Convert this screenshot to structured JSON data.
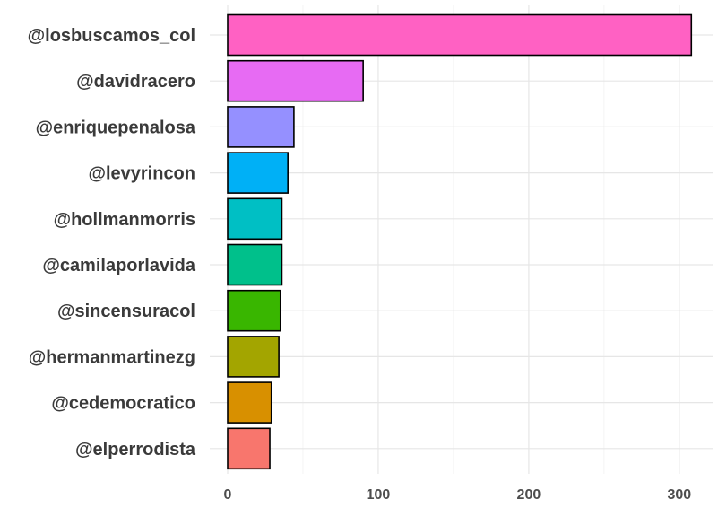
{
  "chart_data": {
    "type": "bar",
    "orientation": "horizontal",
    "title": "",
    "xlabel": "",
    "ylabel": "",
    "categories": [
      "@losbuscamos_col",
      "@davidracero",
      "@enriquepenalosa",
      "@levyrincon",
      "@hollmanmorris",
      "@camilaporlavida",
      "@sincensuracol",
      "@hermanmartinezg",
      "@cedemocratico",
      "@elperrodista"
    ],
    "values": [
      308,
      90,
      44,
      40,
      36,
      36,
      35,
      34,
      29,
      28
    ],
    "colors": [
      "#FF61C3",
      "#E76BF3",
      "#9590FF",
      "#00B0F6",
      "#00BFC4",
      "#00C08B",
      "#39B600",
      "#A3A500",
      "#D89000",
      "#F8766D"
    ],
    "xlim": [
      0,
      320
    ],
    "x_ticks": [
      0,
      100,
      200,
      300
    ],
    "x_tick_labels": [
      "0",
      "100",
      "200",
      "300"
    ],
    "grid": true,
    "legend": "none"
  }
}
